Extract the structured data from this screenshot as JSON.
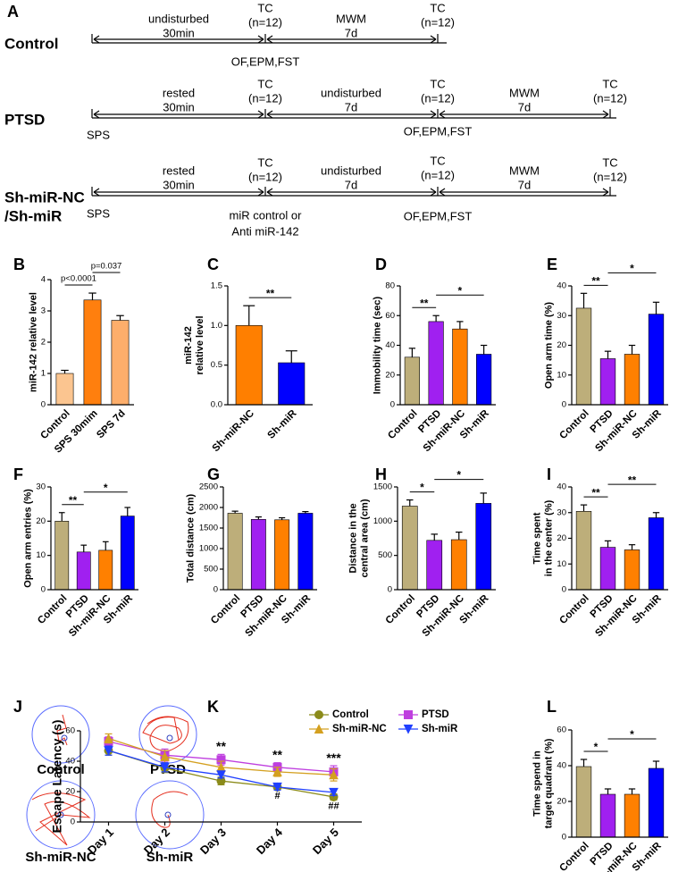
{
  "timeline": {
    "label": "A",
    "rows": [
      {
        "name": [
          "Control"
        ],
        "texts": [
          "undisturbed",
          "30min",
          "TC",
          "(n=12)",
          "MWM",
          "7d",
          "TC",
          "(n=12)",
          "OF,EPM,FST"
        ]
      },
      {
        "name": [
          "PTSD"
        ],
        "texts": [
          "rested",
          "30min",
          "TC",
          "(n=12)",
          "undisturbed",
          "7d",
          "TC",
          "(n=12)",
          "MWM",
          "7d",
          "TC",
          "(n=12)",
          "SPS",
          "OF,EPM,FST"
        ]
      },
      {
        "name": [
          "Sh-miR-NC",
          "/Sh-miR"
        ],
        "texts": [
          "rested",
          "30min",
          "TC",
          "(n=12)",
          "undisturbed",
          "7d",
          "TC",
          "(n=12)",
          "MWM",
          "7d",
          "TC",
          "(n=12)",
          "SPS",
          "miR control or",
          "Anti miR-142",
          "OF,EPM,FST"
        ]
      }
    ]
  },
  "tracks": {
    "label": "J",
    "names": [
      "Control",
      "PTSD",
      "Sh-miR-NC",
      "Sh-miR"
    ]
  },
  "chart_data": [
    {
      "type": "bar",
      "label": "B",
      "ylabel": [
        "miR-142 relative level"
      ],
      "categories": [
        "Control",
        "SPS 30mim",
        "SPS 7d"
      ],
      "values": [
        1.0,
        3.35,
        2.7
      ],
      "errors": [
        0.1,
        0.22,
        0.15
      ],
      "colors": [
        "#fbc590",
        "#ff7f0e",
        "#fdae6b"
      ],
      "ylim": [
        0,
        4
      ],
      "yticks": [
        0,
        1,
        2,
        3,
        4
      ],
      "brackets": [
        {
          "span": [
            0,
            1
          ],
          "text": "p<0.0001"
        },
        {
          "span": [
            1,
            2
          ],
          "text": "p=0.037"
        }
      ]
    },
    {
      "type": "bar",
      "label": "C",
      "ylabel": [
        "miR-142",
        "relative level"
      ],
      "categories": [
        "Sh-miR-NC",
        "Sh-miR"
      ],
      "values": [
        1.0,
        0.53
      ],
      "errors": [
        0.25,
        0.15
      ],
      "colors": [
        "#ff7f00",
        "#0000ff"
      ],
      "ylim": [
        0,
        1.5
      ],
      "yticks": [
        {
          "value": 0,
          "label": "0.0"
        },
        {
          "value": 0.5,
          "label": "0.5"
        },
        {
          "value": 1,
          "label": "1.0"
        },
        {
          "value": 1.5,
          "label": "1.5"
        }
      ],
      "brackets": [
        {
          "span": [
            0,
            1
          ],
          "text": "**"
        }
      ]
    },
    {
      "type": "bar",
      "label": "D",
      "ylabel": [
        "Immobility time (sec)"
      ],
      "categories": [
        "Control",
        "PTSD",
        "Sh-miR-NC",
        "Sh-miR"
      ],
      "values": [
        32,
        56,
        51,
        34
      ],
      "errors": [
        6,
        4,
        5,
        6
      ],
      "colors": [
        "#bdae7a",
        "#a020f0",
        "#ff8000",
        "#0000ff"
      ],
      "ylim": [
        0,
        80
      ],
      "yticks": [
        0,
        20,
        40,
        60,
        80
      ],
      "brackets": [
        {
          "span": [
            0,
            1
          ],
          "text": "**"
        },
        {
          "span": [
            1,
            3
          ],
          "text": "*"
        }
      ]
    },
    {
      "type": "bar",
      "label": "E",
      "ylabel": [
        "Open arm time (%)"
      ],
      "categories": [
        "Control",
        "PTSD",
        "Sh-miR-NC",
        "Sh-miR"
      ],
      "values": [
        32.5,
        15.5,
        17,
        30.5
      ],
      "errors": [
        5,
        2.5,
        3,
        4
      ],
      "colors": [
        "#bdae7a",
        "#a020f0",
        "#ff8000",
        "#0000ff"
      ],
      "ylim": [
        0,
        40
      ],
      "yticks": [
        0,
        10,
        20,
        30,
        40
      ],
      "brackets": [
        {
          "span": [
            0,
            1
          ],
          "text": "**"
        },
        {
          "span": [
            1,
            3
          ],
          "text": "*"
        }
      ]
    },
    {
      "type": "bar",
      "label": "F",
      "ylabel": [
        "Open arm entries (%)"
      ],
      "categories": [
        "Control",
        "PTSD",
        "Sh-miR-NC",
        "Sh-miR"
      ],
      "values": [
        20,
        11,
        11.5,
        21.5
      ],
      "errors": [
        2.5,
        2,
        2.5,
        2.5
      ],
      "colors": [
        "#bdae7a",
        "#a020f0",
        "#ff8000",
        "#0000ff"
      ],
      "ylim": [
        0,
        30
      ],
      "yticks": [
        0,
        10,
        20,
        30
      ],
      "brackets": [
        {
          "span": [
            0,
            1
          ],
          "text": "**"
        },
        {
          "span": [
            1,
            3
          ],
          "text": "*"
        }
      ]
    },
    {
      "type": "bar",
      "label": "G",
      "ylabel": [
        "Total distance (cm)"
      ],
      "categories": [
        "Control",
        "PTSD",
        "Sh-miR-NC",
        "Sh-miR"
      ],
      "values": [
        1860,
        1710,
        1700,
        1860
      ],
      "errors": [
        50,
        60,
        50,
        40
      ],
      "colors": [
        "#bdae7a",
        "#a020f0",
        "#ff8000",
        "#0000ff"
      ],
      "ylim": [
        0,
        2500
      ],
      "yticks": [
        0,
        500,
        1000,
        1500,
        2000,
        2500
      ],
      "brackets": []
    },
    {
      "type": "bar",
      "label": "H",
      "ylabel": [
        "Distance in the",
        "central area (cm)"
      ],
      "categories": [
        "Control",
        "PTSD",
        "Sh-miR-NC",
        "Sh-miR"
      ],
      "values": [
        1220,
        720,
        730,
        1260
      ],
      "errors": [
        90,
        90,
        110,
        150
      ],
      "colors": [
        "#bdae7a",
        "#a020f0",
        "#ff8000",
        "#0000ff"
      ],
      "ylim": [
        0,
        1500
      ],
      "yticks": [
        0,
        500,
        1000,
        1500
      ],
      "brackets": [
        {
          "span": [
            0,
            1
          ],
          "text": "*"
        },
        {
          "span": [
            1,
            3
          ],
          "text": "*"
        }
      ]
    },
    {
      "type": "bar",
      "label": "I",
      "ylabel": [
        "Time spent",
        "in the center (%)"
      ],
      "categories": [
        "Control",
        "PTSD",
        "Sh-miR-NC",
        "Sh-miR"
      ],
      "values": [
        30.5,
        16.5,
        15.5,
        28
      ],
      "errors": [
        2.5,
        2.5,
        2,
        2
      ],
      "colors": [
        "#bdae7a",
        "#a020f0",
        "#ff8000",
        "#0000ff"
      ],
      "ylim": [
        0,
        40
      ],
      "yticks": [
        0,
        10,
        20,
        30,
        40
      ],
      "brackets": [
        {
          "span": [
            0,
            1
          ],
          "text": "**"
        },
        {
          "span": [
            1,
            3
          ],
          "text": "**"
        }
      ]
    },
    {
      "type": "line",
      "label": "K",
      "ylabel": [
        "Escape Latency (s)"
      ],
      "categories": [
        "Day 1",
        "Day 2",
        "Day 3",
        "Day 4",
        "Day 5"
      ],
      "series": [
        {
          "name": "Control",
          "color": "#8b8b1a",
          "marker": "circle",
          "values": [
            47,
            35.5,
            27,
            23,
            16.5
          ],
          "errors": [
            3,
            3,
            2.5,
            2,
            2
          ]
        },
        {
          "name": "PTSD",
          "color": "#bf3fdf",
          "marker": "square",
          "values": [
            53,
            44,
            41,
            36,
            33
          ],
          "errors": [
            3,
            4,
            3.5,
            3,
            4
          ]
        },
        {
          "name": "Sh-miR-NC",
          "color": "#d4a020",
          "marker": "triangle-up",
          "values": [
            55,
            43,
            36,
            33,
            31
          ],
          "errors": [
            3,
            4,
            4,
            3,
            4
          ]
        },
        {
          "name": "Sh-miR",
          "color": "#2040ff",
          "marker": "triangle-down",
          "values": [
            47,
            36,
            31,
            23,
            19.5
          ],
          "errors": [
            3,
            3,
            2,
            2,
            2
          ]
        }
      ],
      "ylim": [
        0,
        60
      ],
      "yticks": [
        0,
        20,
        40,
        60
      ],
      "annotations": [
        {
          "category": 2,
          "text": "**",
          "side": "above"
        },
        {
          "category": 3,
          "text": "**",
          "side": "above"
        },
        {
          "category": 4,
          "text": "***",
          "side": "above"
        },
        {
          "category": 3,
          "text": "#",
          "side": "below"
        },
        {
          "category": 4,
          "text": "##",
          "side": "below"
        }
      ]
    },
    {
      "type": "bar",
      "label": "L",
      "ylabel": [
        "Time spend in",
        "target quadrant (%)"
      ],
      "categories": [
        "Control",
        "PTSD",
        "Sh-miR-NC",
        "Sh-miR"
      ],
      "values": [
        39.5,
        24,
        24,
        38.5
      ],
      "errors": [
        4,
        3,
        3,
        4
      ],
      "colors": [
        "#bdae7a",
        "#a020f0",
        "#ff8000",
        "#0000ff"
      ],
      "ylim": [
        0,
        60
      ],
      "yticks": [
        0,
        20,
        40,
        60
      ],
      "brackets": [
        {
          "span": [
            0,
            1
          ],
          "text": "*"
        },
        {
          "span": [
            1,
            3
          ],
          "text": "*"
        }
      ]
    }
  ]
}
